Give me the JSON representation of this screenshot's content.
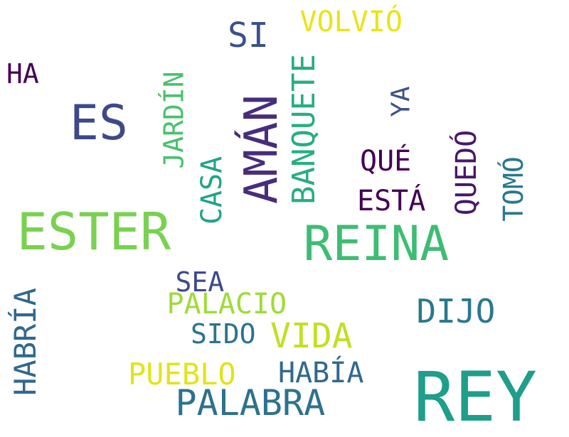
{
  "words": [
    {
      "text": "REY",
      "color": "#1f9e89",
      "vertical": false
    },
    {
      "text": "ESTER",
      "color": "#7ad151",
      "vertical": false
    },
    {
      "text": "REINA",
      "color": "#3fbc73",
      "vertical": false
    },
    {
      "text": "AMÁN",
      "color": "#472d7b",
      "vertical": true
    },
    {
      "text": "ES",
      "color": "#3e4989",
      "vertical": false
    },
    {
      "text": "PALABRA",
      "color": "#2c728e",
      "vertical": false
    },
    {
      "text": "BANQUETE",
      "color": "#27ad81",
      "vertical": true
    },
    {
      "text": "VIDA",
      "color": "#c2df23",
      "vertical": false
    },
    {
      "text": "DIJO",
      "color": "#2a788e",
      "vertical": false
    },
    {
      "text": "SI",
      "color": "#3b528b",
      "vertical": false
    },
    {
      "text": "PUEBLO",
      "color": "#e2e418",
      "vertical": false
    },
    {
      "text": "HABÍA",
      "color": "#31688e",
      "vertical": false
    },
    {
      "text": "PALACIO",
      "color": "#a0da39",
      "vertical": false
    },
    {
      "text": "HABRÍA",
      "color": "#31688e",
      "vertical": true
    },
    {
      "text": "CASA",
      "color": "#20a486",
      "vertical": true
    },
    {
      "text": "JARDÍN",
      "color": "#4ac16d",
      "vertical": true
    },
    {
      "text": "VOLVIÓ",
      "color": "#e8e419",
      "vertical": false
    },
    {
      "text": "SIDO",
      "color": "#2c728e",
      "vertical": false
    },
    {
      "text": "SEA",
      "color": "#3e4a89",
      "vertical": false
    },
    {
      "text": "ESTÁ",
      "color": "#440154",
      "vertical": false
    },
    {
      "text": "QUÉ",
      "color": "#440154",
      "vertical": false
    },
    {
      "text": "QUEDÓ",
      "color": "#481769",
      "vertical": true
    },
    {
      "text": "TOMÓ",
      "color": "#2a788e",
      "vertical": true
    },
    {
      "text": "YA",
      "color": "#3b528b",
      "vertical": true
    },
    {
      "text": "HA",
      "color": "#440154",
      "vertical": false
    }
  ]
}
